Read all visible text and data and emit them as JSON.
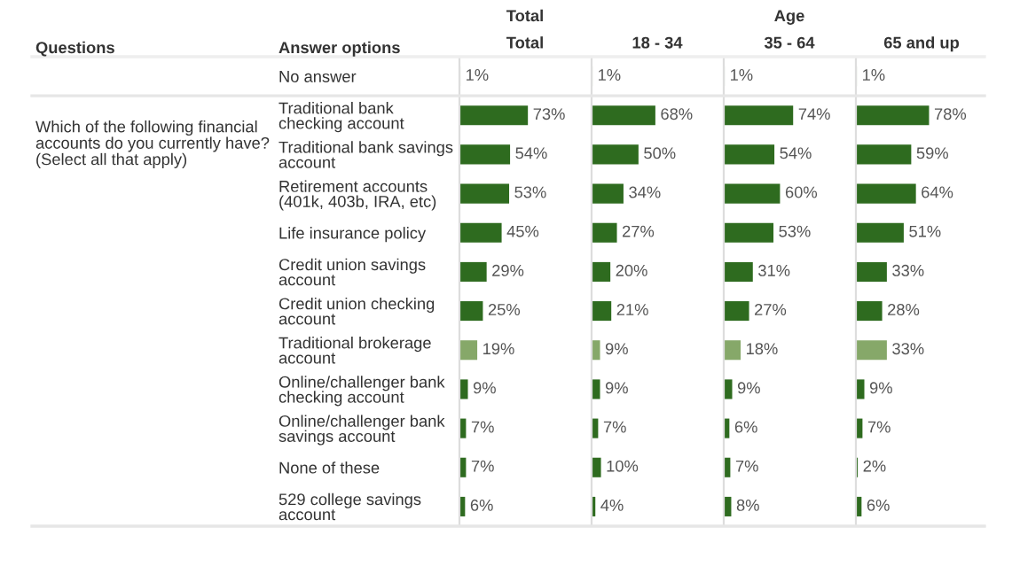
{
  "chart_data": [
    {
      "type": "bar",
      "orientation": "horizontal",
      "title": "Total",
      "tick_labels": "y",
      "xlim": [
        0,
        140
      ],
      "annotations": [
        "Questions",
        "Answer options",
        "Which of the following financial accounts do you currently have? (Select all that apply)",
        "Total"
      ],
      "categories": [
        "No answer",
        "Traditional bank checking account",
        "Traditional bank savings account",
        "Retirement accounts (401k, 403b, IRA, etc)",
        "Life insurance policy",
        "Credit union savings account",
        "Credit union checking account",
        "Traditional brokerage account",
        "Online/challenger bank checking account",
        "Online/challenger bank savings account",
        "None of these",
        "529 college savings account"
      ],
      "values": [
        1,
        73,
        54,
        53,
        45,
        29,
        25,
        19,
        9,
        7,
        7,
        6
      ],
      "value_labels": [
        "1%",
        "73%",
        "54%",
        "53%",
        "45%",
        "29%",
        "25%",
        "19%",
        "9%",
        "7%",
        "7%",
        "6%"
      ],
      "colors": [
        "#86a869",
        "#2e6b1f",
        "#2e6b1f",
        "#2e6b1f",
        "#2e6b1f",
        "#2e6b1f",
        "#2e6b1f",
        "#86a869",
        "#2e6b1f",
        "#2e6b1f",
        "#2e6b1f",
        "#2e6b1f"
      ]
    },
    {
      "type": "bar",
      "orientation": "horizontal",
      "title": "18 - 34",
      "tick_labels": false,
      "xlim": [
        0,
        140
      ],
      "annotations": [
        "Age"
      ],
      "values": [
        1,
        68,
        50,
        34,
        27,
        20,
        21,
        9,
        9,
        7,
        10,
        4
      ],
      "value_labels": [
        "1%",
        "68%",
        "50%",
        "34%",
        "27%",
        "20%",
        "21%",
        "9%",
        "9%",
        "7%",
        "10%",
        "4%"
      ],
      "colors": [
        "#86a869",
        "#2e6b1f",
        "#2e6b1f",
        "#2e6b1f",
        "#2e6b1f",
        "#2e6b1f",
        "#2e6b1f",
        "#86a869",
        "#2e6b1f",
        "#2e6b1f",
        "#2e6b1f",
        "#2e6b1f"
      ]
    },
    {
      "type": "bar",
      "orientation": "horizontal",
      "title": "35 - 64",
      "tick_labels": false,
      "xlim": [
        0,
        140
      ],
      "values": [
        1,
        74,
        54,
        60,
        53,
        31,
        27,
        18,
        9,
        6,
        7,
        8
      ],
      "value_labels": [
        "1%",
        "74%",
        "54%",
        "60%",
        "53%",
        "31%",
        "27%",
        "18%",
        "9%",
        "6%",
        "7%",
        "8%"
      ],
      "colors": [
        "#86a869",
        "#2e6b1f",
        "#2e6b1f",
        "#2e6b1f",
        "#2e6b1f",
        "#2e6b1f",
        "#2e6b1f",
        "#86a869",
        "#2e6b1f",
        "#2e6b1f",
        "#2e6b1f",
        "#2e6b1f"
      ]
    },
    {
      "type": "bar",
      "orientation": "horizontal",
      "title": "65 and up",
      "tick_labels": false,
      "xlim": [
        0,
        140
      ],
      "values": [
        1,
        78,
        59,
        64,
        51,
        33,
        28,
        33,
        9,
        7,
        2,
        6
      ],
      "value_labels": [
        "1%",
        "78%",
        "59%",
        "64%",
        "51%",
        "33%",
        "28%",
        "33%",
        "9%",
        "7%",
        "2%",
        "6%"
      ],
      "colors": [
        "#86a869",
        "#2e6b1f",
        "#2e6b1f",
        "#2e6b1f",
        "#2e6b1f",
        "#2e6b1f",
        "#2e6b1f",
        "#86a869",
        "#2e6b1f",
        "#2e6b1f",
        "#2e6b1f",
        "#2e6b1f"
      ]
    }
  ]
}
